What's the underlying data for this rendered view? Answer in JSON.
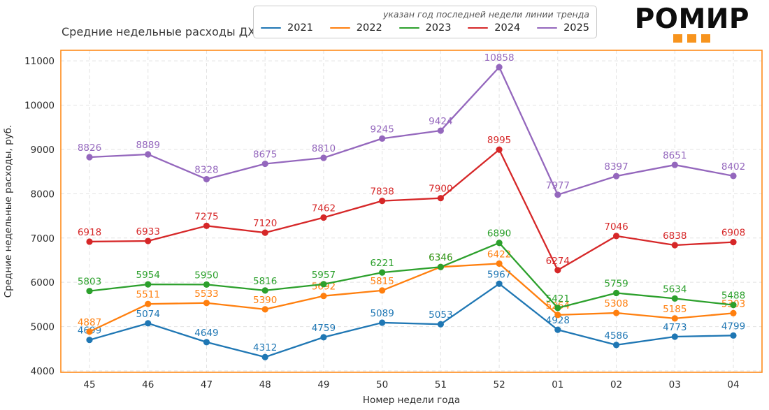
{
  "header": {
    "logo_text": "РОМИР",
    "logo_accent_color": "#f7941e"
  },
  "legend": {
    "title": "указан год последней недели линии тренда",
    "entries": [
      {
        "label": "2021",
        "color": "#1f77b4"
      },
      {
        "label": "2022",
        "color": "#ff7f0e"
      },
      {
        "label": "2023",
        "color": "#2ca02c"
      },
      {
        "label": "2024",
        "color": "#d62728"
      },
      {
        "label": "2025",
        "color": "#9467bd"
      }
    ]
  },
  "chart_data": {
    "type": "line",
    "title": "Средние недельные расходы ДХ",
    "xlabel": "Номер недели года",
    "ylabel": "Средние недельные расходы, руб.",
    "categories": [
      "45",
      "46",
      "47",
      "48",
      "49",
      "50",
      "51",
      "52",
      "01",
      "02",
      "03",
      "04"
    ],
    "yticks": [
      4000,
      5000,
      6000,
      7000,
      8000,
      9000,
      10000,
      11000
    ],
    "ylim": [
      4000,
      11250
    ],
    "grid": true,
    "grid_style": "dashed",
    "grid_color": "#e2e2e2",
    "border_color": "#ff8b1a",
    "legend_position": "top",
    "point_labels_shown": true,
    "series": [
      {
        "name": "2021",
        "color": "#1f77b4",
        "values": [
          4699,
          5074,
          4649,
          4312,
          4759,
          5089,
          5053,
          5967,
          4928,
          4586,
          4773,
          4799
        ]
      },
      {
        "name": "2022",
        "color": "#ff7f0e",
        "values": [
          4887,
          5511,
          5533,
          5390,
          5692,
          5815,
          6346,
          6422,
          5264,
          5308,
          5185,
          5303
        ]
      },
      {
        "name": "2023",
        "color": "#2ca02c",
        "values": [
          5803,
          5954,
          5950,
          5816,
          5957,
          6221,
          6346,
          6890,
          5421,
          5759,
          5634,
          5488
        ]
      },
      {
        "name": "2024",
        "color": "#d62728",
        "values": [
          6918,
          6933,
          7275,
          7120,
          7462,
          7838,
          7900,
          8995,
          6274,
          7046,
          6838,
          6908
        ]
      },
      {
        "name": "2025",
        "color": "#9467bd",
        "values": [
          8826,
          8889,
          8328,
          8675,
          8810,
          9245,
          9424,
          10858,
          7977,
          8397,
          8651,
          8402
        ]
      }
    ]
  }
}
